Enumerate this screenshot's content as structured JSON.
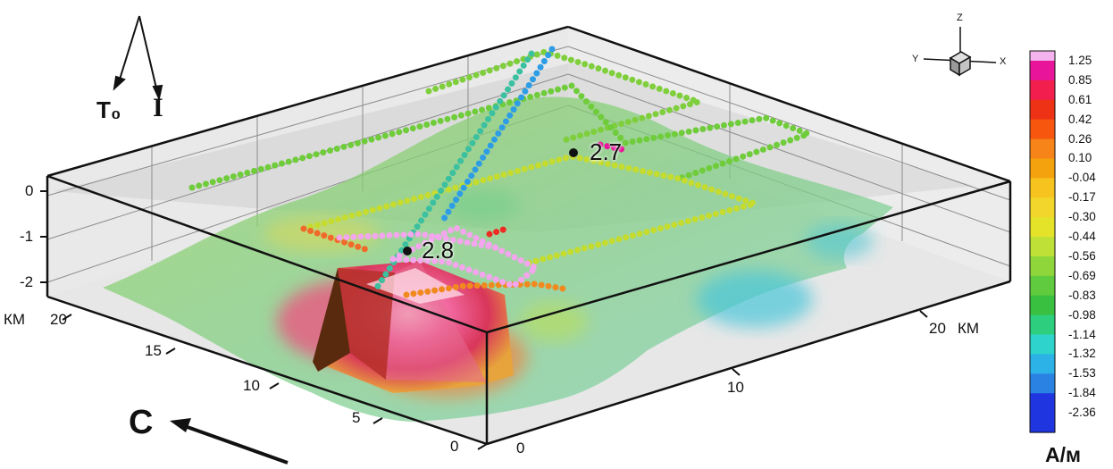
{
  "field_vectors": {
    "t0_label": "T₀",
    "i_label": "I"
  },
  "north": {
    "label": "C"
  },
  "axes": {
    "depth_ticks": [
      "0",
      "-1",
      "-2"
    ],
    "left_axis": {
      "unit": "КМ",
      "ticks": [
        "20",
        "15",
        "10",
        "5",
        "0"
      ]
    },
    "right_axis": {
      "unit": "КМ",
      "ticks": [
        "0",
        "10",
        "20"
      ]
    }
  },
  "orientation": {
    "x": "X",
    "y": "Y",
    "z": "Z"
  },
  "annotations": [
    {
      "label": "2.7"
    },
    {
      "label": "2.8"
    }
  ],
  "colorbar": {
    "unit": "А/м",
    "levels": [
      "1.25",
      "0.85",
      "0.61",
      "0.42",
      "0.26",
      "0.10",
      "-0.04",
      "-0.17",
      "-0.30",
      "-0.44",
      "-0.56",
      "-0.69",
      "-0.83",
      "-0.98",
      "-1.14",
      "-1.32",
      "-1.53",
      "-1.84",
      "-2.36"
    ],
    "colors": [
      "#f5b3f0",
      "#e8159a",
      "#f11e4e",
      "#ee3216",
      "#f6560e",
      "#f68418",
      "#f5a20f",
      "#f7c31e",
      "#f2d62c",
      "#e5e22a",
      "#bfe037",
      "#8fd63b",
      "#60cb3e",
      "#39c040",
      "#2dcf7e",
      "#2ed3cb",
      "#2cb2e7",
      "#2a82e3",
      "#1f35e0"
    ]
  }
}
